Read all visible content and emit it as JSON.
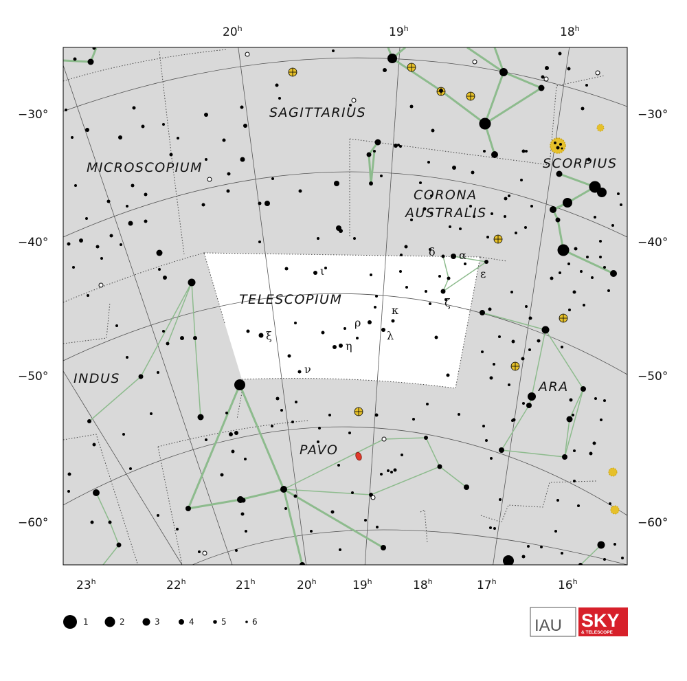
{
  "map": {
    "constellation": "Telescopium",
    "colors": {
      "background_sky": "#d9d9d9",
      "highlight_area": "#ffffff",
      "stick_lines": "#8dbb8d",
      "grid_lines": "#555555",
      "boundary_dots": "#444444",
      "star": "#000000",
      "cluster": "#e6c02a",
      "nebula": "#e03a2a"
    },
    "top_ra_labels": [
      {
        "value": "20",
        "unit": "h"
      },
      {
        "value": "19",
        "unit": "h"
      },
      {
        "value": "18",
        "unit": "h"
      }
    ],
    "bottom_ra_labels": [
      {
        "value": "23",
        "unit": "h"
      },
      {
        "value": "22",
        "unit": "h"
      },
      {
        "value": "21",
        "unit": "h"
      },
      {
        "value": "20",
        "unit": "h"
      },
      {
        "value": "19",
        "unit": "h"
      },
      {
        "value": "18",
        "unit": "h"
      },
      {
        "value": "17",
        "unit": "h"
      },
      {
        "value": "16",
        "unit": "h"
      }
    ],
    "dec_labels_left": [
      "−30°",
      "−40°",
      "−50°",
      "−60°"
    ],
    "dec_labels_right": [
      "−30°",
      "−40°",
      "−50°",
      "−60°"
    ],
    "constellation_names": [
      "SAGITTARIUS",
      "MICROSCOPIUM",
      "CORONA",
      "AUSTRALIS",
      "SCORPIUS",
      "TELESCOPIUM",
      "INDUS",
      "ARA",
      "PAVO"
    ],
    "greek_letters": [
      "δ",
      "α",
      "ε",
      "ζ",
      "ι",
      "κ",
      "ρ",
      "λ",
      "ξ",
      "η",
      "ν"
    ]
  },
  "legend": {
    "magnitudes": [
      "1",
      "2",
      "3",
      "4",
      "5",
      "6"
    ]
  },
  "logos": {
    "iau": "IAU",
    "sky_top": "SKY",
    "sky_bottom": "& TELESCOPE"
  }
}
